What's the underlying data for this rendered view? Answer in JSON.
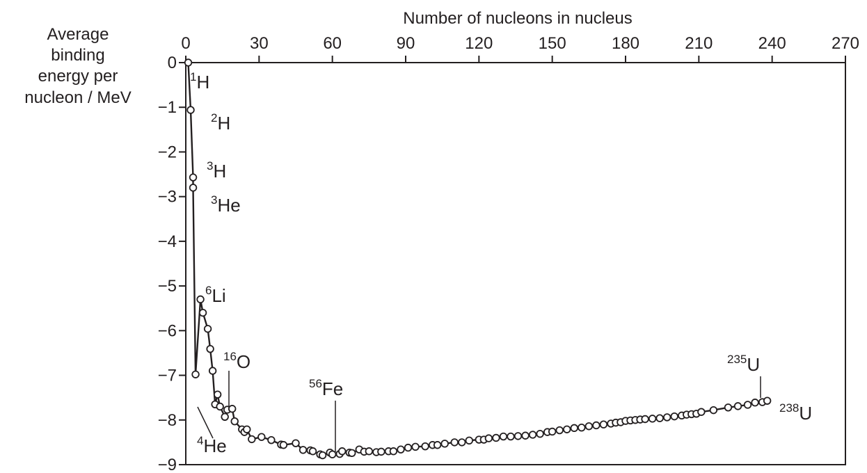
{
  "chart_data": {
    "type": "line",
    "title": "",
    "xlabel": "Number of nucleons in nucleus",
    "ylabel": [
      "Average",
      "binding",
      "energy per",
      "nucleon / MeV"
    ],
    "xlim": [
      0,
      270
    ],
    "ylim": [
      -9,
      0
    ],
    "x_ticks": [
      "0",
      "30",
      "60",
      "90",
      "120",
      "150",
      "180",
      "210",
      "240",
      "270"
    ],
    "y_ticks": [
      "0",
      "−1",
      "−2",
      "−3",
      "−4",
      "−5",
      "−6",
      "−7",
      "−8",
      "−9"
    ],
    "x_tick_values": [
      0,
      30,
      60,
      90,
      120,
      150,
      180,
      210,
      240,
      270
    ],
    "y_tick_values": [
      0,
      -1,
      -2,
      -3,
      -4,
      -5,
      -6,
      -7,
      -8,
      -9
    ],
    "x_axis_position": "top",
    "grid": false,
    "legend": "none",
    "line_color": "#231f20",
    "marker": "open-circle",
    "series": [
      {
        "x": [
          1,
          2,
          3,
          3,
          4,
          6,
          7,
          9,
          10,
          11,
          12,
          13,
          14,
          16,
          17,
          19,
          20,
          23,
          24,
          25,
          27,
          31,
          35,
          39,
          40,
          45,
          48,
          51,
          52,
          55,
          56,
          59,
          60,
          63,
          64,
          67,
          68,
          71,
          73,
          75,
          78,
          80,
          83,
          85,
          88,
          91,
          94,
          98,
          101,
          103,
          106,
          110,
          113,
          116,
          120,
          122,
          124,
          127,
          130,
          133,
          136,
          139,
          142,
          145,
          148,
          150,
          153,
          156,
          159,
          162,
          165,
          168,
          171,
          174,
          176,
          178,
          180,
          182,
          184,
          186,
          188,
          191,
          194,
          197,
          200,
          203,
          205,
          207,
          209,
          211,
          216,
          222,
          226,
          230,
          233,
          236,
          238
        ],
        "y": [
          0,
          -1.06,
          -2.57,
          -2.8,
          -6.98,
          -5.3,
          -5.6,
          -5.96,
          -6.41,
          -6.9,
          -7.65,
          -7.43,
          -7.7,
          -7.93,
          -7.77,
          -7.75,
          -8.03,
          -8.21,
          -8.27,
          -8.21,
          -8.43,
          -8.38,
          -8.45,
          -8.55,
          -8.56,
          -8.52,
          -8.67,
          -8.68,
          -8.7,
          -8.77,
          -8.79,
          -8.73,
          -8.77,
          -8.76,
          -8.7,
          -8.73,
          -8.74,
          -8.66,
          -8.71,
          -8.7,
          -8.72,
          -8.71,
          -8.7,
          -8.7,
          -8.66,
          -8.62,
          -8.6,
          -8.59,
          -8.56,
          -8.56,
          -8.53,
          -8.5,
          -8.5,
          -8.46,
          -8.44,
          -8.44,
          -8.41,
          -8.4,
          -8.37,
          -8.37,
          -8.36,
          -8.35,
          -8.33,
          -8.31,
          -8.27,
          -8.26,
          -8.23,
          -8.21,
          -8.18,
          -8.17,
          -8.14,
          -8.12,
          -8.1,
          -8.08,
          -8.06,
          -8.05,
          -8.02,
          -8.01,
          -8.0,
          -7.99,
          -7.98,
          -7.97,
          -7.96,
          -7.94,
          -7.92,
          -7.9,
          -7.88,
          -7.87,
          -7.86,
          -7.82,
          -7.78,
          -7.72,
          -7.69,
          -7.66,
          -7.61,
          -7.6,
          -7.57
        ]
      }
    ],
    "annotations": [
      {
        "sup": "1",
        "text": "H"
      },
      {
        "sup": "2",
        "text": "H"
      },
      {
        "sup": "3",
        "text": "H"
      },
      {
        "sup": "3",
        "text": "He"
      },
      {
        "sup": "6",
        "text": "Li"
      },
      {
        "sup": "16",
        "text": "O"
      },
      {
        "sup": "4",
        "text": "He"
      },
      {
        "sup": "56",
        "text": "Fe"
      },
      {
        "sup": "235",
        "text": "U"
      },
      {
        "sup": "238",
        "text": "U"
      }
    ]
  }
}
